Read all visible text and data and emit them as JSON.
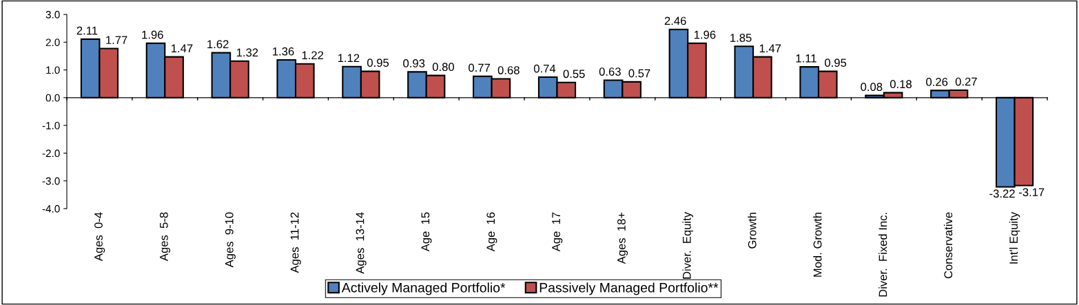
{
  "chart_data": {
    "type": "bar",
    "categories": [
      "Ages  0-4",
      "Ages  5-8",
      "Ages  9-10",
      "Ages  11-12",
      "Ages  13-14",
      "Age  15",
      "Age  16",
      "Age  17",
      "Ages  18+",
      "Diver.  Equity",
      "Growth",
      "Mod. Growth",
      "Diver.  Fixed Inc.",
      "Conservative",
      "Int'l Equity"
    ],
    "series": [
      {
        "name": "Actively Managed Portfolio*",
        "color": "#4f81bd",
        "values": [
          2.11,
          1.96,
          1.62,
          1.36,
          1.12,
          0.93,
          0.77,
          0.74,
          0.63,
          2.46,
          1.85,
          1.11,
          0.08,
          0.26,
          -3.22
        ],
        "value_labels": [
          "2.11",
          "1.96",
          "1.62",
          "1.36",
          "1.12",
          "0.93",
          "0.77",
          "0.74",
          "0.63",
          "2.46",
          "1.85",
          "1.11",
          "0.08",
          "0.26",
          "-3.22"
        ]
      },
      {
        "name": "Passively Managed Portfolio**",
        "color": "#c0504d",
        "values": [
          1.77,
          1.47,
          1.32,
          1.22,
          0.95,
          0.8,
          0.68,
          0.55,
          0.57,
          1.96,
          1.47,
          0.95,
          0.18,
          0.27,
          -3.17
        ],
        "value_labels": [
          "1.77",
          "1.47",
          "1.32",
          "1.22",
          "0.95",
          "0.80",
          "0.68",
          "0.55",
          "0.57",
          "1.96",
          "1.47",
          "0.95",
          "0.18",
          "0.27",
          "-3.17"
        ]
      }
    ],
    "ylim": [
      -4.0,
      3.0
    ],
    "yticks": [
      {
        "value": -4,
        "label": "-4.0"
      },
      {
        "value": -3,
        "label": "-3.0"
      },
      {
        "value": -2,
        "label": "-2.0"
      },
      {
        "value": -1,
        "label": "-1.0"
      },
      {
        "value": 0,
        "label": "0.0"
      },
      {
        "value": 1,
        "label": "1.0"
      },
      {
        "value": 2,
        "label": "2.0"
      },
      {
        "value": 3,
        "label": "3.0"
      }
    ],
    "legend": "bottom"
  }
}
